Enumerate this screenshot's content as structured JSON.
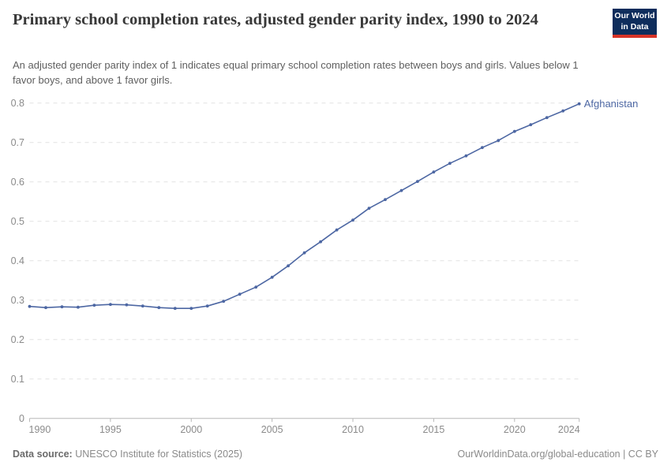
{
  "header": {
    "title": "Primary school completion rates, adjusted gender parity index, 1990 to 2024",
    "subtitle": "An adjusted gender parity index of 1 indicates equal primary school completion rates between boys and girls. Values below 1 favor boys, and above 1 favor girls.",
    "logo": {
      "line1": "Our World",
      "line2": "in Data",
      "bg_color": "#0e2d5c",
      "bar_color": "#d73327"
    }
  },
  "footer": {
    "data_source_label": "Data source:",
    "data_source_value": " UNESCO Institute for Statistics (2025)",
    "credit": "OurWorldinData.org/global-education | CC BY"
  },
  "chart_data": {
    "type": "line",
    "title": "Primary school completion rates, adjusted gender parity index, 1990 to 2024",
    "xlabel": "",
    "ylabel": "",
    "xlim": [
      1990,
      2024
    ],
    "ylim": [
      0,
      0.8
    ],
    "grid": "horizontal-dashed",
    "legend_position": "end-of-line-label",
    "x_ticks": [
      1990,
      1995,
      2000,
      2005,
      2010,
      2015,
      2020,
      2024
    ],
    "y_ticks": [
      0,
      0.1,
      0.2,
      0.3,
      0.4,
      0.5,
      0.6,
      0.7,
      0.8
    ],
    "x": [
      1990,
      1991,
      1992,
      1993,
      1994,
      1995,
      1996,
      1997,
      1998,
      1999,
      2000,
      2001,
      2002,
      2003,
      2004,
      2005,
      2006,
      2007,
      2008,
      2009,
      2010,
      2011,
      2012,
      2013,
      2014,
      2015,
      2016,
      2017,
      2018,
      2019,
      2020,
      2021,
      2022,
      2023,
      2024
    ],
    "series": [
      {
        "name": "Afghanistan",
        "color": "#4d67a3",
        "values": [
          0.284,
          0.281,
          0.283,
          0.282,
          0.287,
          0.289,
          0.288,
          0.285,
          0.281,
          0.279,
          0.279,
          0.285,
          0.297,
          0.315,
          0.333,
          0.358,
          0.387,
          0.42,
          0.448,
          0.478,
          0.503,
          0.533,
          0.555,
          0.578,
          0.601,
          0.625,
          0.647,
          0.666,
          0.687,
          0.705,
          0.728,
          0.745,
          0.763,
          0.78,
          0.798
        ]
      }
    ],
    "entity_label": "Afghanistan",
    "colors": {
      "grid": "#e2e2e2",
      "axis": "#b8b8b8",
      "tick_label": "#8b8b8b",
      "entity_label": "#4d67a3"
    }
  }
}
